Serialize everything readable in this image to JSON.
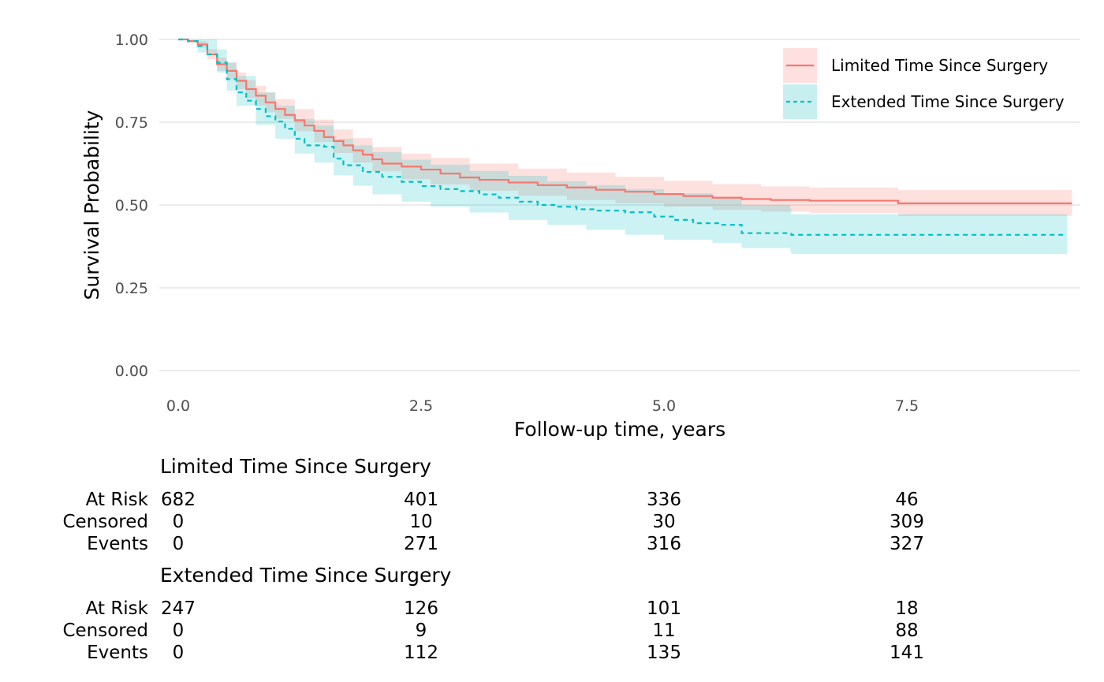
{
  "chart_data": {
    "type": "line",
    "subtype": "kaplan-meier survival curve with confidence bands",
    "title": "",
    "xlabel": "Follow-up time, years",
    "ylabel": "Survival Probability",
    "xlim": [
      0,
      9.2
    ],
    "ylim": [
      0,
      1
    ],
    "x_ticks": [
      0,
      2.5,
      5,
      7.5
    ],
    "x_tick_labels": [
      "0.0",
      "2.5",
      "5.0",
      "7.5"
    ],
    "y_ticks": [
      0,
      0.25,
      0.5,
      0.75,
      1
    ],
    "y_tick_labels": [
      "0.00",
      "0.25",
      "0.50",
      "0.75",
      "1.00"
    ],
    "grid": "horizontal major",
    "legend_position": "top-right",
    "series": [
      {
        "name": "Limited Time Since Surgery",
        "color": "#F8766D",
        "band_color": "#FFE0E0",
        "line_style": "solid",
        "points": [
          [
            0.0,
            1.0
          ],
          [
            0.1,
            0.995
          ],
          [
            0.2,
            0.985
          ],
          [
            0.3,
            0.955
          ],
          [
            0.4,
            0.925
          ],
          [
            0.5,
            0.905
          ],
          [
            0.6,
            0.875
          ],
          [
            0.7,
            0.85
          ],
          [
            0.8,
            0.83
          ],
          [
            0.9,
            0.81
          ],
          [
            1.0,
            0.79
          ],
          [
            1.1,
            0.772
          ],
          [
            1.2,
            0.756
          ],
          [
            1.3,
            0.74
          ],
          [
            1.4,
            0.724
          ],
          [
            1.5,
            0.705
          ],
          [
            1.6,
            0.693
          ],
          [
            1.7,
            0.68
          ],
          [
            1.8,
            0.665
          ],
          [
            1.9,
            0.652
          ],
          [
            2.0,
            0.638
          ],
          [
            2.1,
            0.625
          ],
          [
            2.3,
            0.616
          ],
          [
            2.5,
            0.607
          ],
          [
            2.7,
            0.595
          ],
          [
            2.9,
            0.583
          ],
          [
            3.1,
            0.576
          ],
          [
            3.4,
            0.568
          ],
          [
            3.7,
            0.56
          ],
          [
            4.0,
            0.553
          ],
          [
            4.3,
            0.546
          ],
          [
            4.6,
            0.54
          ],
          [
            4.9,
            0.533
          ],
          [
            5.2,
            0.527
          ],
          [
            5.5,
            0.522
          ],
          [
            5.8,
            0.518
          ],
          [
            6.1,
            0.515
          ],
          [
            6.5,
            0.513
          ],
          [
            7.0,
            0.513
          ],
          [
            7.4,
            0.513
          ],
          [
            7.41,
            0.505
          ],
          [
            9.2,
            0.505
          ]
        ],
        "lower": [
          [
            0.0,
            1.0
          ],
          [
            0.1,
            0.99
          ],
          [
            0.2,
            0.975
          ],
          [
            0.3,
            0.94
          ],
          [
            0.4,
            0.905
          ],
          [
            0.5,
            0.88
          ],
          [
            0.6,
            0.85
          ],
          [
            0.7,
            0.823
          ],
          [
            0.8,
            0.8
          ],
          [
            0.9,
            0.78
          ],
          [
            1.0,
            0.76
          ],
          [
            1.2,
            0.723
          ],
          [
            1.4,
            0.69
          ],
          [
            1.6,
            0.657
          ],
          [
            1.8,
            0.628
          ],
          [
            2.0,
            0.602
          ],
          [
            2.3,
            0.578
          ],
          [
            2.6,
            0.562
          ],
          [
            3.0,
            0.543
          ],
          [
            3.5,
            0.528
          ],
          [
            4.0,
            0.515
          ],
          [
            4.5,
            0.505
          ],
          [
            5.0,
            0.495
          ],
          [
            5.5,
            0.485
          ],
          [
            6.0,
            0.48
          ],
          [
            6.5,
            0.476
          ],
          [
            7.4,
            0.476
          ],
          [
            7.41,
            0.467
          ],
          [
            9.2,
            0.467
          ]
        ],
        "upper": [
          [
            0.0,
            1.0
          ],
          [
            0.1,
            1.0
          ],
          [
            0.2,
            0.995
          ],
          [
            0.3,
            0.97
          ],
          [
            0.4,
            0.945
          ],
          [
            0.5,
            0.93
          ],
          [
            0.6,
            0.9
          ],
          [
            0.7,
            0.877
          ],
          [
            0.8,
            0.86
          ],
          [
            0.9,
            0.84
          ],
          [
            1.0,
            0.82
          ],
          [
            1.2,
            0.79
          ],
          [
            1.4,
            0.758
          ],
          [
            1.6,
            0.728
          ],
          [
            1.8,
            0.702
          ],
          [
            2.0,
            0.675
          ],
          [
            2.3,
            0.655
          ],
          [
            2.6,
            0.642
          ],
          [
            3.0,
            0.625
          ],
          [
            3.5,
            0.61
          ],
          [
            4.0,
            0.598
          ],
          [
            4.5,
            0.585
          ],
          [
            5.0,
            0.573
          ],
          [
            5.5,
            0.563
          ],
          [
            6.0,
            0.556
          ],
          [
            6.5,
            0.553
          ],
          [
            7.4,
            0.553
          ],
          [
            7.41,
            0.545
          ],
          [
            9.2,
            0.545
          ]
        ]
      },
      {
        "name": "Extended Time Since Surgery",
        "color": "#00BFC4",
        "band_color": "#C8EFF0",
        "line_style": "dashed",
        "points": [
          [
            0.0,
            1.0
          ],
          [
            0.1,
            0.995
          ],
          [
            0.2,
            0.98
          ],
          [
            0.3,
            0.955
          ],
          [
            0.4,
            0.93
          ],
          [
            0.5,
            0.88
          ],
          [
            0.6,
            0.84
          ],
          [
            0.7,
            0.815
          ],
          [
            0.8,
            0.79
          ],
          [
            0.9,
            0.768
          ],
          [
            1.0,
            0.752
          ],
          [
            1.1,
            0.73
          ],
          [
            1.2,
            0.7
          ],
          [
            1.3,
            0.68
          ],
          [
            1.5,
            0.676
          ],
          [
            1.6,
            0.64
          ],
          [
            1.7,
            0.62
          ],
          [
            1.9,
            0.6
          ],
          [
            2.1,
            0.585
          ],
          [
            2.3,
            0.57
          ],
          [
            2.5,
            0.557
          ],
          [
            2.7,
            0.548
          ],
          [
            2.9,
            0.542
          ],
          [
            3.1,
            0.532
          ],
          [
            3.3,
            0.522
          ],
          [
            3.5,
            0.51
          ],
          [
            3.7,
            0.5
          ],
          [
            3.9,
            0.495
          ],
          [
            4.1,
            0.487
          ],
          [
            4.3,
            0.483
          ],
          [
            4.6,
            0.478
          ],
          [
            4.9,
            0.465
          ],
          [
            5.1,
            0.455
          ],
          [
            5.3,
            0.445
          ],
          [
            5.6,
            0.44
          ],
          [
            5.7,
            0.44
          ],
          [
            5.8,
            0.415
          ],
          [
            6.3,
            0.413
          ],
          [
            6.31,
            0.41
          ],
          [
            9.15,
            0.41
          ]
        ],
        "lower": [
          [
            0.0,
            1.0
          ],
          [
            0.2,
            0.96
          ],
          [
            0.4,
            0.9
          ],
          [
            0.5,
            0.845
          ],
          [
            0.6,
            0.8
          ],
          [
            0.8,
            0.742
          ],
          [
            1.0,
            0.7
          ],
          [
            1.2,
            0.655
          ],
          [
            1.4,
            0.628
          ],
          [
            1.6,
            0.59
          ],
          [
            1.8,
            0.558
          ],
          [
            2.0,
            0.532
          ],
          [
            2.3,
            0.51
          ],
          [
            2.6,
            0.495
          ],
          [
            3.0,
            0.477
          ],
          [
            3.4,
            0.455
          ],
          [
            3.8,
            0.44
          ],
          [
            4.2,
            0.425
          ],
          [
            4.6,
            0.41
          ],
          [
            5.0,
            0.395
          ],
          [
            5.5,
            0.385
          ],
          [
            5.8,
            0.37
          ],
          [
            6.3,
            0.36
          ],
          [
            6.31,
            0.352
          ],
          [
            9.15,
            0.352
          ]
        ],
        "upper": [
          [
            0.0,
            1.0
          ],
          [
            0.2,
            1.0
          ],
          [
            0.4,
            0.97
          ],
          [
            0.5,
            0.93
          ],
          [
            0.6,
            0.89
          ],
          [
            0.8,
            0.84
          ],
          [
            1.0,
            0.8
          ],
          [
            1.2,
            0.76
          ],
          [
            1.4,
            0.74
          ],
          [
            1.6,
            0.7
          ],
          [
            1.8,
            0.68
          ],
          [
            2.0,
            0.66
          ],
          [
            2.3,
            0.637
          ],
          [
            2.6,
            0.622
          ],
          [
            3.0,
            0.603
          ],
          [
            3.4,
            0.588
          ],
          [
            3.8,
            0.572
          ],
          [
            4.2,
            0.56
          ],
          [
            4.6,
            0.548
          ],
          [
            5.0,
            0.535
          ],
          [
            5.5,
            0.52
          ],
          [
            5.8,
            0.5
          ],
          [
            6.3,
            0.49
          ],
          [
            6.31,
            0.472
          ],
          [
            9.15,
            0.472
          ]
        ]
      }
    ],
    "risk_table": {
      "row_labels": [
        "At Risk",
        "Censored",
        "Events"
      ],
      "time_points": [
        0,
        2.5,
        5,
        7.5
      ],
      "groups": [
        {
          "name": "Limited Time Since Surgery",
          "at_risk": [
            682,
            401,
            336,
            46
          ],
          "censored": [
            0,
            10,
            30,
            309
          ],
          "events": [
            0,
            271,
            316,
            327
          ]
        },
        {
          "name": "Extended Time Since Surgery",
          "at_risk": [
            247,
            126,
            101,
            18
          ],
          "censored": [
            0,
            9,
            11,
            88
          ],
          "events": [
            0,
            112,
            135,
            141
          ]
        }
      ]
    }
  }
}
